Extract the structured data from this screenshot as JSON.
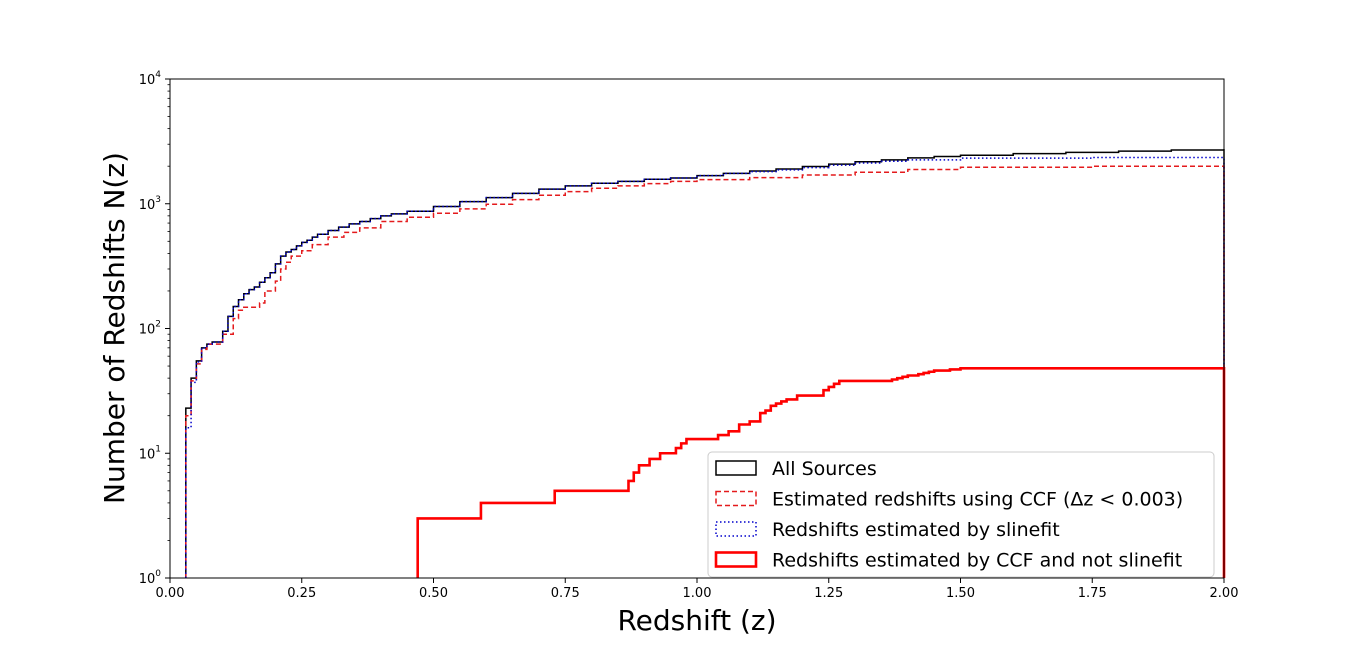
{
  "chart_data": {
    "type": "line",
    "title": "",
    "xlabel": "Redshift (z)",
    "ylabel": "Number of Redshifts N(z)",
    "xlim": [
      0,
      2
    ],
    "ylim": [
      1,
      10000
    ],
    "yscale": "log",
    "grid": false,
    "legend_position": "lower-right",
    "x_ticks": [
      "0.00",
      "0.25",
      "0.50",
      "0.75",
      "1.00",
      "1.25",
      "1.50",
      "1.75",
      "2.00"
    ],
    "y_ticks": [
      {
        "base": "10",
        "exp": "0"
      },
      {
        "base": "10",
        "exp": "1"
      },
      {
        "base": "10",
        "exp": "2"
      },
      {
        "base": "10",
        "exp": "3"
      },
      {
        "base": "10",
        "exp": "4"
      }
    ],
    "series": [
      {
        "name": "All Sources",
        "style": "solid",
        "color": "#000000",
        "x": [
          0.03,
          0.04,
          0.05,
          0.06,
          0.07,
          0.08,
          0.1,
          0.11,
          0.12,
          0.13,
          0.14,
          0.15,
          0.16,
          0.17,
          0.18,
          0.19,
          0.2,
          0.21,
          0.22,
          0.23,
          0.24,
          0.25,
          0.26,
          0.27,
          0.28,
          0.3,
          0.32,
          0.34,
          0.36,
          0.38,
          0.4,
          0.42,
          0.45,
          0.5,
          0.55,
          0.6,
          0.65,
          0.7,
          0.75,
          0.8,
          0.85,
          0.9,
          0.95,
          1.0,
          1.05,
          1.1,
          1.15,
          1.2,
          1.25,
          1.3,
          1.35,
          1.4,
          1.45,
          1.5,
          1.6,
          1.7,
          1.8,
          1.9,
          2.0
        ],
        "y": [
          23,
          40,
          55,
          70,
          75,
          78,
          95,
          125,
          150,
          170,
          190,
          205,
          215,
          235,
          255,
          280,
          330,
          380,
          410,
          430,
          460,
          490,
          510,
          540,
          570,
          610,
          650,
          690,
          720,
          760,
          800,
          830,
          870,
          950,
          1040,
          1120,
          1210,
          1310,
          1390,
          1460,
          1510,
          1570,
          1610,
          1680,
          1750,
          1830,
          1900,
          1990,
          2080,
          2170,
          2250,
          2330,
          2390,
          2450,
          2520,
          2580,
          2640,
          2700,
          2750
        ]
      },
      {
        "name": "Estimated redshifts using CCF (Δz < 0.003)",
        "style": "dashed",
        "color": "#e41a1c",
        "x": [
          0.03,
          0.04,
          0.05,
          0.06,
          0.07,
          0.1,
          0.12,
          0.13,
          0.14,
          0.17,
          0.18,
          0.2,
          0.21,
          0.22,
          0.23,
          0.25,
          0.27,
          0.3,
          0.33,
          0.36,
          0.4,
          0.45,
          0.5,
          0.55,
          0.6,
          0.65,
          0.7,
          0.75,
          0.8,
          0.85,
          0.9,
          0.95,
          1.0,
          1.1,
          1.2,
          1.3,
          1.4,
          1.5,
          1.75,
          2.0
        ],
        "y": [
          20,
          38,
          52,
          68,
          75,
          90,
          120,
          140,
          148,
          160,
          200,
          240,
          300,
          340,
          380,
          420,
          470,
          540,
          590,
          640,
          720,
          780,
          840,
          910,
          990,
          1080,
          1170,
          1250,
          1330,
          1390,
          1450,
          1510,
          1560,
          1620,
          1700,
          1790,
          1880,
          1960,
          2000,
          2000
        ]
      },
      {
        "name": "Redshifts estimated by slinefit",
        "style": "dotted",
        "color": "#0000cc",
        "x": [
          0.03,
          0.04,
          0.05,
          0.06,
          0.07,
          0.08,
          0.1,
          0.11,
          0.12,
          0.13,
          0.14,
          0.15,
          0.16,
          0.17,
          0.18,
          0.19,
          0.2,
          0.21,
          0.22,
          0.23,
          0.24,
          0.25,
          0.26,
          0.27,
          0.28,
          0.3,
          0.32,
          0.34,
          0.36,
          0.38,
          0.4,
          0.42,
          0.45,
          0.5,
          0.55,
          0.6,
          0.65,
          0.7,
          0.75,
          0.8,
          0.85,
          0.9,
          0.95,
          1.0,
          1.05,
          1.1,
          1.15,
          1.2,
          1.25,
          1.3,
          1.35,
          1.4,
          1.5,
          1.75,
          2.0
        ],
        "y": [
          16,
          37,
          54,
          70,
          75,
          78,
          95,
          125,
          150,
          170,
          190,
          205,
          215,
          235,
          255,
          280,
          330,
          380,
          410,
          430,
          460,
          490,
          510,
          540,
          570,
          610,
          650,
          690,
          720,
          760,
          800,
          830,
          870,
          950,
          1040,
          1120,
          1210,
          1310,
          1390,
          1460,
          1510,
          1570,
          1610,
          1680,
          1750,
          1810,
          1870,
          1950,
          2040,
          2120,
          2190,
          2250,
          2320,
          2350,
          2350
        ]
      },
      {
        "name": "Redshifts estimated by CCF and not slinefit",
        "style": "solid-thick",
        "color": "#ff0000",
        "x": [
          0.47,
          0.59,
          0.73,
          0.87,
          0.88,
          0.89,
          0.91,
          0.93,
          0.96,
          0.97,
          0.98,
          1.0,
          1.04,
          1.06,
          1.08,
          1.1,
          1.12,
          1.13,
          1.14,
          1.15,
          1.16,
          1.17,
          1.19,
          1.24,
          1.25,
          1.26,
          1.27,
          1.3,
          1.35,
          1.37,
          1.38,
          1.39,
          1.4,
          1.41,
          1.42,
          1.43,
          1.44,
          1.45,
          1.48,
          1.5,
          2.0
        ],
        "y": [
          3,
          4,
          5,
          6,
          7,
          8,
          9,
          10,
          11,
          12,
          13,
          13,
          14,
          15,
          17,
          18,
          21,
          22,
          24,
          25,
          26,
          27,
          29,
          32,
          34,
          36,
          38,
          38,
          38,
          39,
          40,
          41,
          42,
          42,
          43,
          44,
          45,
          46,
          47,
          48,
          48
        ]
      }
    ]
  }
}
